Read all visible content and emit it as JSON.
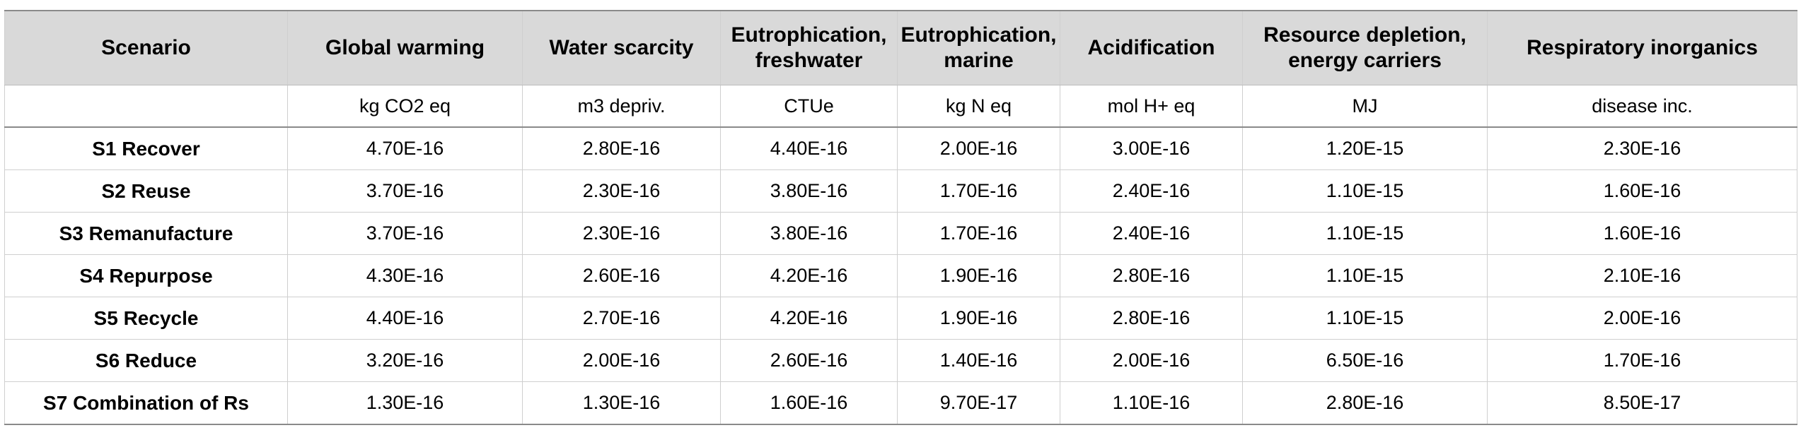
{
  "table": {
    "headers": [
      "Scenario",
      "Global warming",
      "Water scarcity",
      "Eutrophication, freshwater",
      "Eutrophication, marine",
      "Acidification",
      "Resource depletion, energy carriers",
      "Respiratory inorganics"
    ],
    "units": [
      "",
      "kg CO2 eq",
      "m3 depriv.",
      "CTUe",
      "kg N eq",
      "mol H+ eq",
      "MJ",
      "disease inc."
    ],
    "rows": [
      [
        "S1 Recover",
        "4.70E-16",
        "2.80E-16",
        "4.40E-16",
        "2.00E-16",
        "3.00E-16",
        "1.20E-15",
        "2.30E-16"
      ],
      [
        "S2 Reuse",
        "3.70E-16",
        "2.30E-16",
        "3.80E-16",
        "1.70E-16",
        "2.40E-16",
        "1.10E-15",
        "1.60E-16"
      ],
      [
        "S3 Remanufacture",
        "3.70E-16",
        "2.30E-16",
        "3.80E-16",
        "1.70E-16",
        "2.40E-16",
        "1.10E-15",
        "1.60E-16"
      ],
      [
        "S4 Repurpose",
        "4.30E-16",
        "2.60E-16",
        "4.20E-16",
        "1.90E-16",
        "2.80E-16",
        "1.10E-15",
        "2.10E-16"
      ],
      [
        "S5 Recycle",
        "4.40E-16",
        "2.70E-16",
        "4.20E-16",
        "1.90E-16",
        "2.80E-16",
        "1.10E-15",
        "2.00E-16"
      ],
      [
        "S6 Reduce",
        "3.20E-16",
        "2.00E-16",
        "2.60E-16",
        "1.40E-16",
        "2.00E-16",
        "6.50E-16",
        "1.70E-16"
      ],
      [
        "S7 Combination of Rs",
        "1.30E-16",
        "1.30E-16",
        "1.60E-16",
        "9.70E-17",
        "1.10E-16",
        "2.80E-16",
        "8.50E-17"
      ]
    ]
  }
}
